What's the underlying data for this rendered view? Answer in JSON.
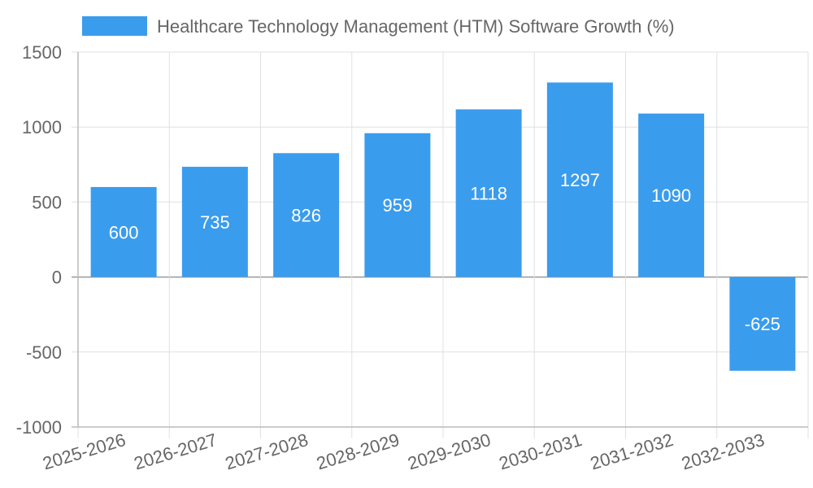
{
  "chart_data": {
    "type": "bar",
    "categories": [
      "2025-2026",
      "2026-2027",
      "2027-2028",
      "2028-2029",
      "2029-2030",
      "2030-2031",
      "2031-2032",
      "2032-2033"
    ],
    "series": [
      {
        "name": "Healthcare Technology Management (HTM) Software Growth (%)",
        "values": [
          600,
          735,
          826,
          959,
          1118,
          1297,
          1090,
          -625
        ],
        "color": "#3a9ced"
      }
    ],
    "ylim": [
      -1000,
      1500
    ],
    "yticks": [
      1500,
      1000,
      500,
      0,
      -500,
      -1000
    ],
    "grid": true,
    "legend_position": "top-center",
    "title": "",
    "xlabel": "",
    "ylabel": ""
  }
}
